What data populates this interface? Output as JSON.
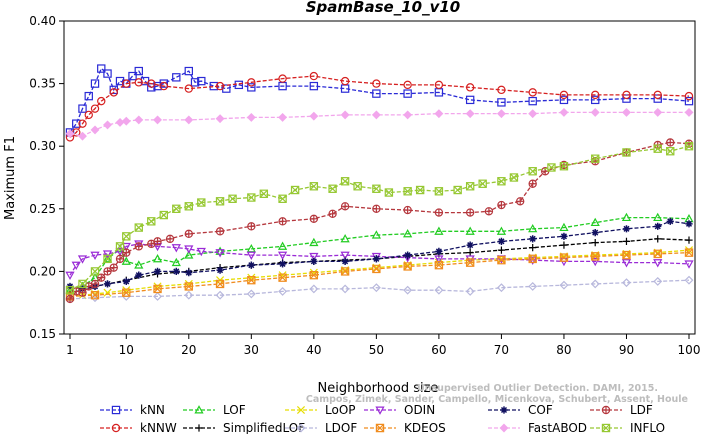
{
  "chart_data": {
    "type": "line",
    "title": "SpamBase_10_v10",
    "xlabel": "Neighborhood size",
    "ylabel": "Maximum F1",
    "xlim": [
      1,
      100
    ],
    "ylim": [
      0.15,
      0.4
    ],
    "xticks": [
      1,
      10,
      20,
      30,
      40,
      50,
      60,
      70,
      80,
      90,
      100
    ],
    "yticks": [
      0.15,
      0.2,
      0.25,
      0.3,
      0.35,
      0.4
    ],
    "xtick_labels": [
      "1",
      "10",
      "20",
      "30",
      "40",
      "50",
      "60",
      "70",
      "80",
      "90",
      "100"
    ],
    "ytick_labels": [
      "0.15",
      "0.20",
      "0.25",
      "0.30",
      "0.35",
      "0.40"
    ],
    "grid": false,
    "legend_position": "bottom",
    "credit_lines": [
      "Unsupervised Outlier Detection. DAMI, 2015.",
      "Campos, Zimek, Sander, Campello, Micenkova, Schubert, Assent, Houle"
    ],
    "series": [
      {
        "name": "kNN",
        "color": "#2a2ad6",
        "marker": "square",
        "dash": "dashed",
        "x": [
          1,
          2,
          3,
          4,
          5,
          6,
          7,
          8,
          9,
          10,
          11,
          12,
          13,
          14,
          15,
          16,
          18,
          20,
          21,
          22,
          24,
          26,
          28,
          30,
          35,
          40,
          45,
          50,
          55,
          60,
          65,
          70,
          75,
          80,
          85,
          90,
          95,
          100
        ],
        "y": [
          0.311,
          0.318,
          0.33,
          0.34,
          0.35,
          0.362,
          0.358,
          0.345,
          0.352,
          0.35,
          0.356,
          0.36,
          0.352,
          0.347,
          0.348,
          0.35,
          0.355,
          0.36,
          0.351,
          0.352,
          0.348,
          0.346,
          0.349,
          0.347,
          0.348,
          0.348,
          0.346,
          0.342,
          0.342,
          0.343,
          0.337,
          0.335,
          0.336,
          0.337,
          0.337,
          0.338,
          0.338,
          0.336
        ]
      },
      {
        "name": "kNNW",
        "color": "#d62020",
        "marker": "circle",
        "dash": "dashed",
        "x": [
          1,
          2,
          3,
          4,
          5,
          6,
          8,
          10,
          12,
          14,
          16,
          20,
          25,
          30,
          35,
          40,
          45,
          50,
          55,
          60,
          65,
          70,
          75,
          80,
          85,
          90,
          95,
          100
        ],
        "y": [
          0.307,
          0.311,
          0.318,
          0.325,
          0.33,
          0.336,
          0.343,
          0.35,
          0.351,
          0.35,
          0.348,
          0.346,
          0.348,
          0.351,
          0.354,
          0.356,
          0.352,
          0.35,
          0.349,
          0.349,
          0.347,
          0.345,
          0.343,
          0.341,
          0.341,
          0.341,
          0.341,
          0.34
        ]
      },
      {
        "name": "LOF",
        "color": "#22cc22",
        "marker": "triangle-up",
        "dash": "dashed",
        "x": [
          1,
          3,
          5,
          7,
          9,
          10,
          12,
          15,
          18,
          20,
          25,
          30,
          35,
          40,
          45,
          50,
          55,
          60,
          65,
          70,
          75,
          80,
          85,
          90,
          95,
          100
        ],
        "y": [
          0.185,
          0.188,
          0.195,
          0.21,
          0.218,
          0.208,
          0.205,
          0.21,
          0.207,
          0.213,
          0.216,
          0.218,
          0.22,
          0.223,
          0.226,
          0.229,
          0.23,
          0.232,
          0.232,
          0.232,
          0.234,
          0.235,
          0.239,
          0.243,
          0.243,
          0.242
        ]
      },
      {
        "name": "SimplifiedLOF",
        "color": "#000000",
        "marker": "plus",
        "dash": "dashed",
        "x": [
          1,
          3,
          5,
          7,
          10,
          15,
          20,
          25,
          30,
          35,
          40,
          45,
          50,
          55,
          60,
          65,
          70,
          75,
          80,
          85,
          90,
          95,
          100
        ],
        "y": [
          0.183,
          0.185,
          0.188,
          0.19,
          0.193,
          0.198,
          0.2,
          0.203,
          0.205,
          0.207,
          0.208,
          0.209,
          0.21,
          0.212,
          0.214,
          0.215,
          0.217,
          0.219,
          0.221,
          0.223,
          0.224,
          0.226,
          0.225
        ]
      },
      {
        "name": "LoOP",
        "color": "#e6dd00",
        "marker": "x",
        "dash": "dashed",
        "x": [
          1,
          3,
          5,
          7,
          10,
          15,
          20,
          25,
          30,
          35,
          40,
          45,
          50,
          55,
          60,
          65,
          70,
          75,
          80,
          85,
          90,
          95,
          100
        ],
        "y": [
          0.18,
          0.181,
          0.182,
          0.183,
          0.185,
          0.188,
          0.19,
          0.193,
          0.195,
          0.197,
          0.199,
          0.201,
          0.203,
          0.205,
          0.207,
          0.209,
          0.21,
          0.211,
          0.212,
          0.213,
          0.214,
          0.215,
          0.217
        ]
      },
      {
        "name": "LDOF",
        "color": "#b8b8dc",
        "marker": "diamond",
        "dash": "dashed",
        "x": [
          1,
          5,
          10,
          15,
          20,
          25,
          30,
          35,
          40,
          45,
          50,
          55,
          60,
          65,
          70,
          75,
          80,
          85,
          90,
          95,
          100
        ],
        "y": [
          0.178,
          0.179,
          0.18,
          0.18,
          0.181,
          0.181,
          0.182,
          0.184,
          0.186,
          0.186,
          0.187,
          0.185,
          0.185,
          0.184,
          0.187,
          0.188,
          0.189,
          0.19,
          0.191,
          0.192,
          0.193
        ]
      },
      {
        "name": "ODIN",
        "color": "#9a2bd6",
        "marker": "triangle-down",
        "dash": "dashed",
        "x": [
          1,
          2,
          3,
          5,
          7,
          9,
          10,
          12,
          15,
          18,
          20,
          22,
          25,
          30,
          35,
          40,
          45,
          50,
          55,
          60,
          65,
          70,
          75,
          80,
          85,
          90,
          95,
          100
        ],
        "y": [
          0.197,
          0.205,
          0.21,
          0.213,
          0.214,
          0.216,
          0.22,
          0.222,
          0.22,
          0.219,
          0.218,
          0.216,
          0.215,
          0.213,
          0.213,
          0.212,
          0.213,
          0.212,
          0.211,
          0.21,
          0.21,
          0.21,
          0.209,
          0.208,
          0.208,
          0.207,
          0.207,
          0.206
        ]
      },
      {
        "name": "KDEOS",
        "color": "#f08c1e",
        "marker": "square-x",
        "dash": "dashed",
        "x": [
          1,
          5,
          10,
          15,
          20,
          25,
          30,
          35,
          40,
          45,
          50,
          55,
          60,
          65,
          70,
          75,
          80,
          85,
          90,
          95,
          100
        ],
        "y": [
          0.18,
          0.181,
          0.183,
          0.186,
          0.188,
          0.19,
          0.193,
          0.195,
          0.197,
          0.2,
          0.202,
          0.204,
          0.205,
          0.207,
          0.209,
          0.21,
          0.211,
          0.212,
          0.213,
          0.214,
          0.215
        ]
      },
      {
        "name": "COF",
        "color": "#101060",
        "marker": "asterisk",
        "dash": "dashed",
        "x": [
          1,
          3,
          5,
          7,
          10,
          12,
          15,
          18,
          20,
          25,
          30,
          35,
          40,
          45,
          50,
          55,
          60,
          65,
          70,
          75,
          80,
          85,
          90,
          95,
          97,
          100
        ],
        "y": [
          0.188,
          0.186,
          0.188,
          0.19,
          0.192,
          0.197,
          0.2,
          0.2,
          0.199,
          0.201,
          0.205,
          0.206,
          0.208,
          0.208,
          0.21,
          0.213,
          0.216,
          0.221,
          0.224,
          0.226,
          0.228,
          0.231,
          0.234,
          0.236,
          0.24,
          0.238
        ]
      },
      {
        "name": "FastABOD",
        "color": "#f2a6ec",
        "marker": "diamond-filled",
        "dash": "dashed",
        "x": [
          1,
          3,
          5,
          7,
          9,
          10,
          12,
          15,
          20,
          25,
          30,
          35,
          40,
          45,
          50,
          55,
          60,
          65,
          70,
          75,
          80,
          85,
          90,
          95,
          100
        ],
        "y": [
          0.31,
          0.308,
          0.313,
          0.317,
          0.319,
          0.32,
          0.321,
          0.321,
          0.321,
          0.322,
          0.323,
          0.323,
          0.324,
          0.325,
          0.325,
          0.325,
          0.326,
          0.326,
          0.326,
          0.326,
          0.327,
          0.327,
          0.327,
          0.327,
          0.327
        ]
      },
      {
        "name": "LDF",
        "color": "#b5373d",
        "marker": "circle-plus",
        "dash": "dashed",
        "x": [
          1,
          2,
          3,
          4,
          5,
          6,
          7,
          8,
          9,
          10,
          12,
          14,
          15,
          17,
          20,
          25,
          30,
          35,
          40,
          43,
          45,
          50,
          55,
          60,
          65,
          68,
          70,
          73,
          75,
          77,
          80,
          85,
          90,
          95,
          97,
          100
        ],
        "y": [
          0.178,
          0.184,
          0.183,
          0.188,
          0.19,
          0.195,
          0.2,
          0.203,
          0.21,
          0.215,
          0.22,
          0.222,
          0.224,
          0.226,
          0.23,
          0.232,
          0.236,
          0.24,
          0.242,
          0.246,
          0.252,
          0.25,
          0.249,
          0.247,
          0.247,
          0.248,
          0.253,
          0.256,
          0.27,
          0.28,
          0.285,
          0.288,
          0.295,
          0.301,
          0.303,
          0.302
        ]
      },
      {
        "name": "INFLO",
        "color": "#96c832",
        "marker": "star",
        "dash": "dashed",
        "x": [
          1,
          3,
          5,
          7,
          9,
          10,
          12,
          14,
          16,
          18,
          20,
          22,
          25,
          27,
          30,
          32,
          35,
          37,
          40,
          43,
          45,
          47,
          50,
          52,
          55,
          57,
          60,
          63,
          65,
          67,
          70,
          72,
          75,
          78,
          80,
          85,
          90,
          95,
          97,
          100
        ],
        "y": [
          0.185,
          0.19,
          0.2,
          0.21,
          0.22,
          0.228,
          0.235,
          0.24,
          0.245,
          0.25,
          0.252,
          0.255,
          0.256,
          0.258,
          0.259,
          0.262,
          0.258,
          0.265,
          0.268,
          0.266,
          0.272,
          0.268,
          0.266,
          0.263,
          0.264,
          0.265,
          0.264,
          0.265,
          0.268,
          0.27,
          0.272,
          0.275,
          0.28,
          0.283,
          0.284,
          0.29,
          0.295,
          0.298,
          0.296,
          0.3
        ]
      }
    ]
  }
}
